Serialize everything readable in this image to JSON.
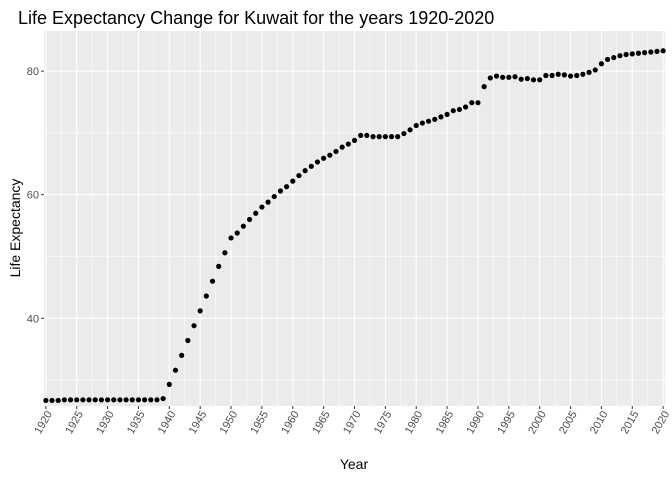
{
  "chart_data": {
    "type": "scatter",
    "title": "Life Expectancy Change for Kuwait for the years 1920-2020",
    "xlabel": "Year",
    "ylabel": "Life Expectancy",
    "xlim": [
      1919.7,
      2020.3
    ],
    "ylim": [
      25.8,
      86.5
    ],
    "x_ticks": [
      1920,
      1925,
      1930,
      1935,
      1940,
      1945,
      1950,
      1955,
      1960,
      1965,
      1970,
      1975,
      1980,
      1985,
      1990,
      1995,
      2000,
      2005,
      2010,
      2015,
      2020
    ],
    "x_tick_labels": [
      "1920",
      "1925",
      "1930",
      "1935",
      "1940",
      "1945",
      "1950",
      "1955",
      "1960",
      "1965",
      "1970",
      "1975",
      "1980",
      "1985",
      "1990",
      "1995",
      "2000",
      "2005",
      "2010",
      "2015",
      "2020"
    ],
    "y_ticks": [
      40,
      60,
      80
    ],
    "y_tick_labels": [
      "40",
      "60",
      "80"
    ],
    "grid": true,
    "colors": {
      "panel": "#ebebeb",
      "grid": "#ffffff",
      "point": "#000000"
    },
    "x": [
      1920,
      1921,
      1922,
      1923,
      1924,
      1925,
      1926,
      1927,
      1928,
      1929,
      1930,
      1931,
      1932,
      1933,
      1934,
      1935,
      1936,
      1937,
      1938,
      1939,
      1940,
      1941,
      1942,
      1943,
      1944,
      1945,
      1946,
      1947,
      1948,
      1949,
      1950,
      1951,
      1952,
      1953,
      1954,
      1955,
      1956,
      1957,
      1958,
      1959,
      1960,
      1961,
      1962,
      1963,
      1964,
      1965,
      1966,
      1967,
      1968,
      1969,
      1970,
      1971,
      1972,
      1973,
      1974,
      1975,
      1976,
      1977,
      1978,
      1979,
      1980,
      1981,
      1982,
      1983,
      1984,
      1985,
      1986,
      1987,
      1988,
      1989,
      1990,
      1991,
      1992,
      1993,
      1994,
      1995,
      1996,
      1997,
      1998,
      1999,
      2000,
      2001,
      2002,
      2003,
      2004,
      2005,
      2006,
      2007,
      2008,
      2009,
      2010,
      2011,
      2012,
      2013,
      2014,
      2015,
      2016,
      2017,
      2018,
      2019,
      2020
    ],
    "y": [
      26.7,
      26.7,
      26.7,
      26.8,
      26.8,
      26.8,
      26.8,
      26.8,
      26.8,
      26.8,
      26.8,
      26.8,
      26.8,
      26.8,
      26.8,
      26.8,
      26.8,
      26.8,
      26.8,
      27.0,
      29.3,
      31.6,
      34.0,
      36.4,
      38.8,
      41.2,
      43.6,
      46.0,
      48.4,
      50.6,
      53.0,
      53.8,
      54.9,
      56.0,
      57.0,
      58.0,
      58.8,
      59.7,
      60.6,
      61.3,
      62.2,
      63.1,
      63.9,
      64.6,
      65.3,
      65.9,
      66.4,
      67.0,
      67.7,
      68.2,
      68.8,
      69.6,
      69.6,
      69.4,
      69.4,
      69.4,
      69.4,
      69.4,
      69.9,
      70.5,
      71.2,
      71.6,
      71.9,
      72.2,
      72.6,
      73.0,
      73.6,
      73.8,
      74.2,
      74.9,
      74.9,
      77.5,
      78.9,
      79.2,
      79.0,
      79.0,
      79.1,
      78.7,
      78.8,
      78.6,
      78.6,
      79.3,
      79.3,
      79.5,
      79.4,
      79.2,
      79.3,
      79.5,
      79.8,
      80.2,
      81.2,
      81.9,
      82.2,
      82.5,
      82.7,
      82.8,
      82.9,
      83.0,
      83.1,
      83.2,
      83.3
    ]
  }
}
